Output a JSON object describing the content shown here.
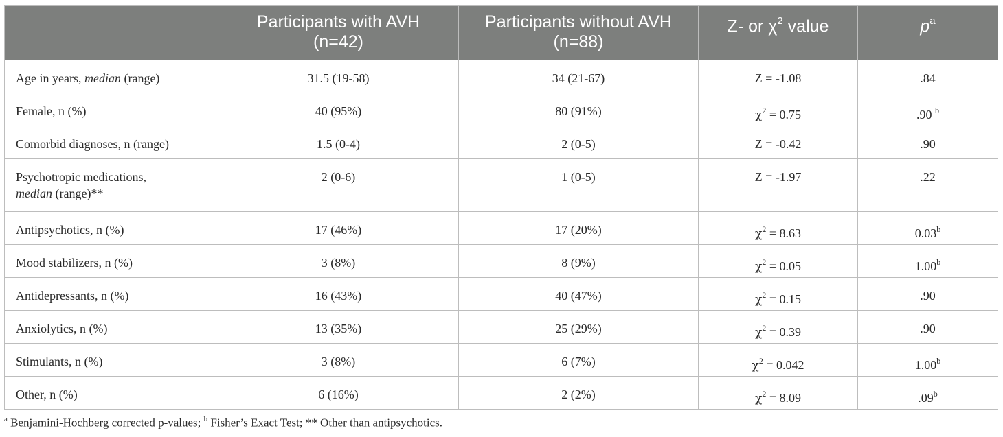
{
  "header": {
    "col1": "",
    "col2_line1": "Participants with AVH",
    "col2_line2": "(n=42)",
    "col3_line1": "Participants without AVH",
    "col3_line2": "(n=88)",
    "col4_pre": "Z- or χ",
    "col4_sup": "2",
    "col4_post": " value",
    "col5_p": "p",
    "col5_sup": "a"
  },
  "rows": [
    {
      "label_pre": "Age in years, ",
      "label_italic": "median",
      "label_post": " (range)",
      "with": "31.5 (19-58)",
      "without": "34 (21-67)",
      "stat_pre": "Z = -1.08",
      "stat_sup": "",
      "stat_post": "",
      "p": ".84",
      "p_sup": ""
    },
    {
      "label_pre": "Female, n (%)",
      "with": "40 (95%)",
      "without": "80 (91%)",
      "stat_pre": "χ",
      "stat_sup": "2",
      "stat_post": " = 0.75",
      "p": ".90 ",
      "p_sup": "b"
    },
    {
      "label_pre": "Comorbid diagnoses, n (range)",
      "with": "1.5 (0-4)",
      "without": "2 (0-5)",
      "stat_pre": "Z = -0.42",
      "stat_sup": "",
      "stat_post": "",
      "p": ".90",
      "p_sup": ""
    },
    {
      "label_line1": "Psychotropic medications,",
      "label_italic": "median",
      "label_post": " (range)**",
      "with": "2 (0-6)",
      "without": "1 (0-5)",
      "stat_pre": "Z = -1.97",
      "stat_sup": "",
      "stat_post": "",
      "p": ".22",
      "p_sup": ""
    },
    {
      "label_pre": "Antipsychotics, n (%)",
      "with": "17 (46%)",
      "without": "17 (20%)",
      "stat_pre": "χ",
      "stat_sup": "2",
      "stat_post": " = 8.63",
      "p": "0.03",
      "p_sup": "b"
    },
    {
      "label_pre": "Mood stabilizers, n (%)",
      "with": "3 (8%)",
      "without": "8 (9%)",
      "stat_pre": "χ",
      "stat_sup": "2",
      "stat_post": " = 0.05",
      "p": "1.00",
      "p_sup": "b"
    },
    {
      "label_pre": "Antidepressants, n (%)",
      "with": "16 (43%)",
      "without": "40 (47%)",
      "stat_pre": "χ",
      "stat_sup": "2",
      "stat_post": " = 0.15",
      "p": ".90",
      "p_sup": ""
    },
    {
      "label_pre": "Anxiolytics, n (%)",
      "with": "13 (35%)",
      "without": "25 (29%)",
      "stat_pre": "χ",
      "stat_sup": "2",
      "stat_post": " = 0.39",
      "p": ".90",
      "p_sup": ""
    },
    {
      "label_pre": "Stimulants, n (%)",
      "with": "3 (8%)",
      "without": "6 (7%)",
      "stat_pre": "χ",
      "stat_sup": "2",
      "stat_post": " = 0.042",
      "p": "1.00",
      "p_sup": "b"
    },
    {
      "label_pre": "Other, n (%)",
      "with": "6 (16%)",
      "without": "2 (2%)",
      "stat_pre": "χ",
      "stat_sup": "2",
      "stat_post": " = 8.09",
      "p": ".09",
      "p_sup": "b"
    }
  ],
  "footnote": {
    "a_mark": "a",
    "a_text": " Benjamini-Hochberg corrected p-values; ",
    "b_mark": "b",
    "b_text": " Fisher’s Exact Test; ** Other than antipsychotics."
  }
}
